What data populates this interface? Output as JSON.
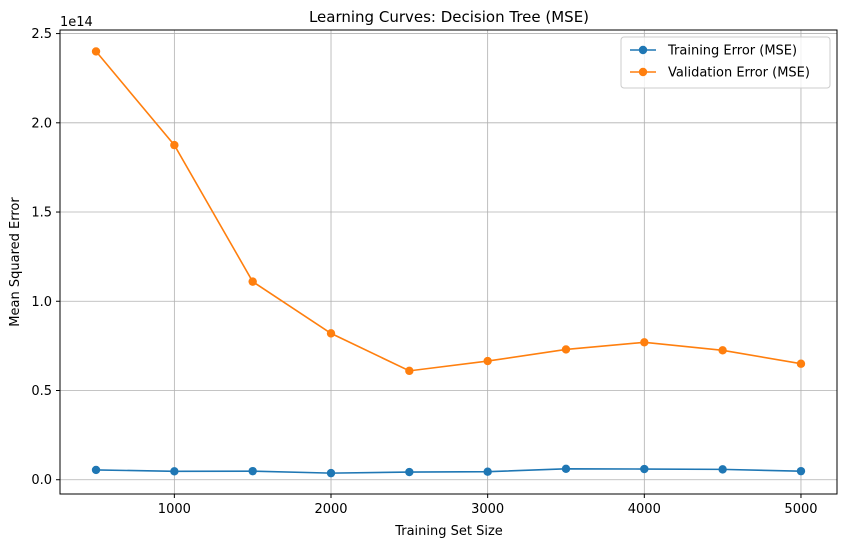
{
  "chart_data": {
    "type": "line",
    "title": "Learning Curves: Decision Tree (MSE)",
    "xlabel": "Training Set Size",
    "ylabel": "Mean Squared Error",
    "y_offset_text": "1e14",
    "y_scale_exponent": 14,
    "xlim": [
      270,
      5230
    ],
    "ylim": [
      -0.08,
      2.52
    ],
    "x_ticks": [
      1000,
      2000,
      3000,
      4000,
      5000
    ],
    "x_tick_labels": [
      "1000",
      "2000",
      "3000",
      "4000",
      "5000"
    ],
    "y_ticks": [
      0.0,
      0.5,
      1.0,
      1.5,
      2.0,
      2.5
    ],
    "y_tick_labels": [
      "0.0",
      "0.5",
      "1.0",
      "1.5",
      "2.0",
      "2.5"
    ],
    "grid": true,
    "legend_position": "top-right",
    "x": [
      500,
      1000,
      1500,
      2000,
      2500,
      3000,
      3500,
      4000,
      4500,
      5000
    ],
    "series": [
      {
        "name": "Training Error (MSE)",
        "color": "#1f77b4",
        "values": [
          0.055,
          0.047,
          0.048,
          0.037,
          0.043,
          0.045,
          0.061,
          0.06,
          0.058,
          0.048
        ]
      },
      {
        "name": "Validation Error (MSE)",
        "color": "#ff7f0e",
        "values": [
          2.4,
          1.875,
          1.11,
          0.82,
          0.61,
          0.665,
          0.73,
          0.77,
          0.725,
          0.65
        ]
      }
    ]
  }
}
